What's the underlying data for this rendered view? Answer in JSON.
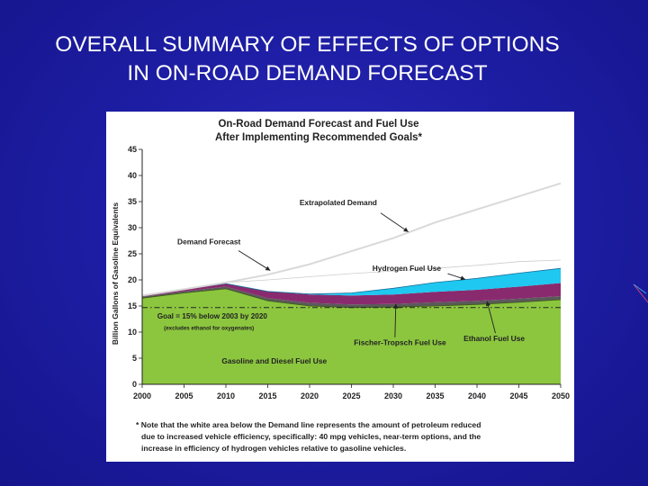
{
  "slide": {
    "title_line1": "OVERALL SUMMARY OF EFFECTS OF OPTIONS",
    "title_line2": "IN ON-ROAD DEMAND FORECAST",
    "background_color": "#1e1ea6",
    "title_color": "#ffffff"
  },
  "chart_data": {
    "type": "area",
    "title": "On-Road Demand Forecast and Fuel Use",
    "subtitle": "After Implementing Recommended Goals*",
    "xlabel": "",
    "ylabel": "Billion Gallons of Gasoline Equivalents",
    "xlim": [
      2000,
      2050
    ],
    "ylim": [
      0,
      45
    ],
    "x_ticks": [
      2000,
      2005,
      2010,
      2015,
      2020,
      2025,
      2030,
      2035,
      2040,
      2045,
      2050
    ],
    "y_ticks": [
      0,
      5,
      10,
      15,
      20,
      25,
      30,
      35,
      40,
      45
    ],
    "grid": false,
    "x": [
      2000,
      2005,
      2010,
      2015,
      2020,
      2025,
      2030,
      2035,
      2040,
      2045,
      2050
    ],
    "series": [
      {
        "name": "Gasoline and Diesel Fuel Use",
        "color": "#8cc63f",
        "values": [
          16.5,
          17.5,
          18.3,
          16.0,
          15.0,
          14.7,
          14.8,
          15.0,
          15.3,
          15.7,
          16.2
        ]
      },
      {
        "name": "Fischer-Tropsch Fuel Use",
        "color": "#5a5a5a",
        "values": [
          0.3,
          0.3,
          0.4,
          0.5,
          0.6,
          0.6,
          0.6,
          0.7,
          0.7,
          0.7,
          0.7
        ]
      },
      {
        "name": "Ethanol Fuel Use",
        "color": "#8a2a6e",
        "values": [
          0.2,
          0.4,
          0.6,
          1.3,
          1.6,
          1.7,
          1.8,
          2.0,
          2.1,
          2.3,
          2.5
        ]
      },
      {
        "name": "Hydrogen Fuel Use",
        "color": "#1ec8f0",
        "values": [
          0,
          0,
          0,
          0,
          0.1,
          0.5,
          1.2,
          1.8,
          2.2,
          2.6,
          2.8
        ]
      },
      {
        "name": "Demand Forecast",
        "color": "#ffffff",
        "values": [
          17.0,
          18.2,
          19.5,
          20.0,
          20.6,
          21.2,
          21.7,
          22.2,
          22.8,
          23.5,
          23.8
        ]
      }
    ],
    "extrapolated_demand": {
      "name": "Extrapolated Demand",
      "values": [
        17.0,
        18.2,
        19.5,
        21.0,
        23.0,
        25.5,
        28.0,
        31.0,
        33.5,
        36.0,
        38.5
      ]
    },
    "goal_line": {
      "value": 14.7,
      "label": "Goal = 15% below 2003 by 2020",
      "note": "(excludes ethanol for oxygenates)"
    },
    "annotations": {
      "extrapolated": "Extrapolated Demand",
      "demand_forecast": "Demand Forecast",
      "hydrogen": "Hydrogen Fuel Use",
      "fischer": "Fischer-Tropsch Fuel Use",
      "ethanol": "Ethanol Fuel Use",
      "gasoline": "Gasoline and Diesel Fuel Use"
    },
    "footnote": [
      "* Note that the white area below the Demand line represents the amount of petroleum reduced",
      "due to increased vehicle efficiency, specifically: 40 mpg vehicles, near-term options, and the",
      "increase in efficiency of hydrogen vehicles relative to gasoline vehicles."
    ]
  }
}
